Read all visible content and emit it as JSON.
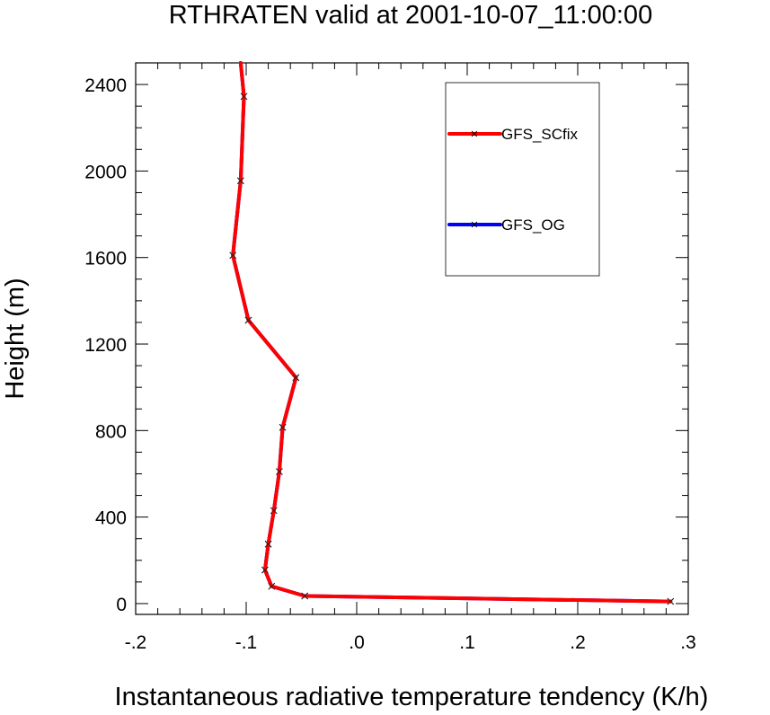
{
  "chart_data": {
    "type": "line",
    "title": "RTHRATEN valid at 2001-10-07_11:00:00",
    "xlabel": "Instantaneous radiative temperature tendency (K/h)",
    "ylabel": "Height (m)",
    "xlim": [
      -0.2,
      0.3
    ],
    "ylim": [
      -50,
      2500
    ],
    "xticks": [
      -0.2,
      -0.1,
      0.0,
      0.1,
      0.2,
      0.3
    ],
    "xtick_labels": [
      "-.2",
      "-.1",
      ".0",
      ".1",
      ".2",
      ".3"
    ],
    "yticks": [
      0,
      400,
      800,
      1200,
      1600,
      2000,
      2400
    ],
    "ytick_labels": [
      "0",
      "400",
      "800",
      "1200",
      "1600",
      "2000",
      "2400"
    ],
    "grid": false,
    "legend_position": "top-right",
    "series": [
      {
        "name": "GFS_OG",
        "color": "#0000ff",
        "marker": "x",
        "x": [
          0.284,
          -0.047,
          -0.077,
          -0.083,
          -0.08,
          -0.075,
          -0.07,
          -0.067,
          -0.055,
          -0.098,
          -0.112,
          -0.105,
          -0.102,
          -0.105
        ],
        "y": [
          10,
          35,
          80,
          155,
          275,
          430,
          610,
          815,
          1045,
          1310,
          1610,
          1955,
          2345,
          2500
        ]
      },
      {
        "name": "GFS_SCfix",
        "color": "#ff0000",
        "marker": "x",
        "x": [
          0.284,
          -0.047,
          -0.077,
          -0.083,
          -0.08,
          -0.075,
          -0.07,
          -0.067,
          -0.055,
          -0.098,
          -0.112,
          -0.105,
          -0.102,
          -0.105
        ],
        "y": [
          10,
          35,
          80,
          155,
          275,
          430,
          610,
          815,
          1045,
          1310,
          1610,
          1955,
          2345,
          2500
        ]
      }
    ],
    "legend_entries": [
      "GFS_SCfix",
      "GFS_OG"
    ]
  }
}
